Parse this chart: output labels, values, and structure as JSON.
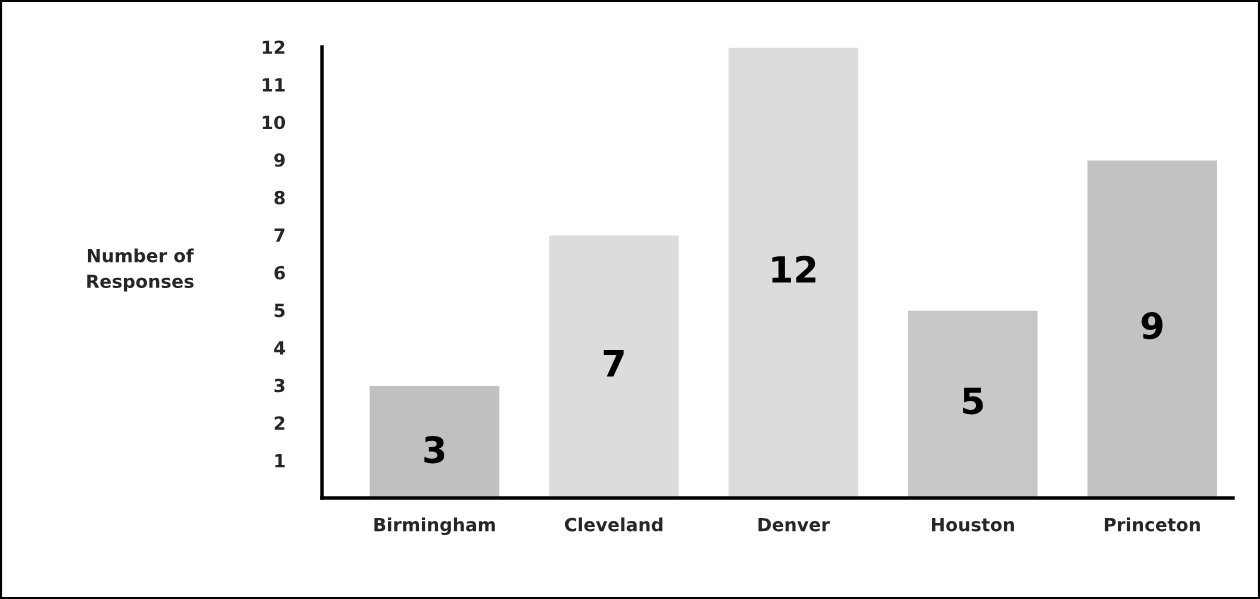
{
  "chart_data": {
    "type": "bar",
    "ylabel": "Number of\nResponses",
    "categories": [
      "Birmingham",
      "Cleveland",
      "Denver",
      "Houston",
      "Princeton"
    ],
    "values": [
      3,
      7,
      12,
      5,
      9
    ],
    "colors": [
      "#c0c0c0",
      "#dcdcdc",
      "#dcdcdc",
      "#c8c8c8",
      "#c2c2c2"
    ],
    "ylim": [
      0,
      12
    ],
    "yticks": [
      1,
      2,
      3,
      4,
      5,
      6,
      7,
      8,
      9,
      10,
      11,
      12
    ],
    "data_labels": true,
    "grid": false,
    "legend": false
  }
}
